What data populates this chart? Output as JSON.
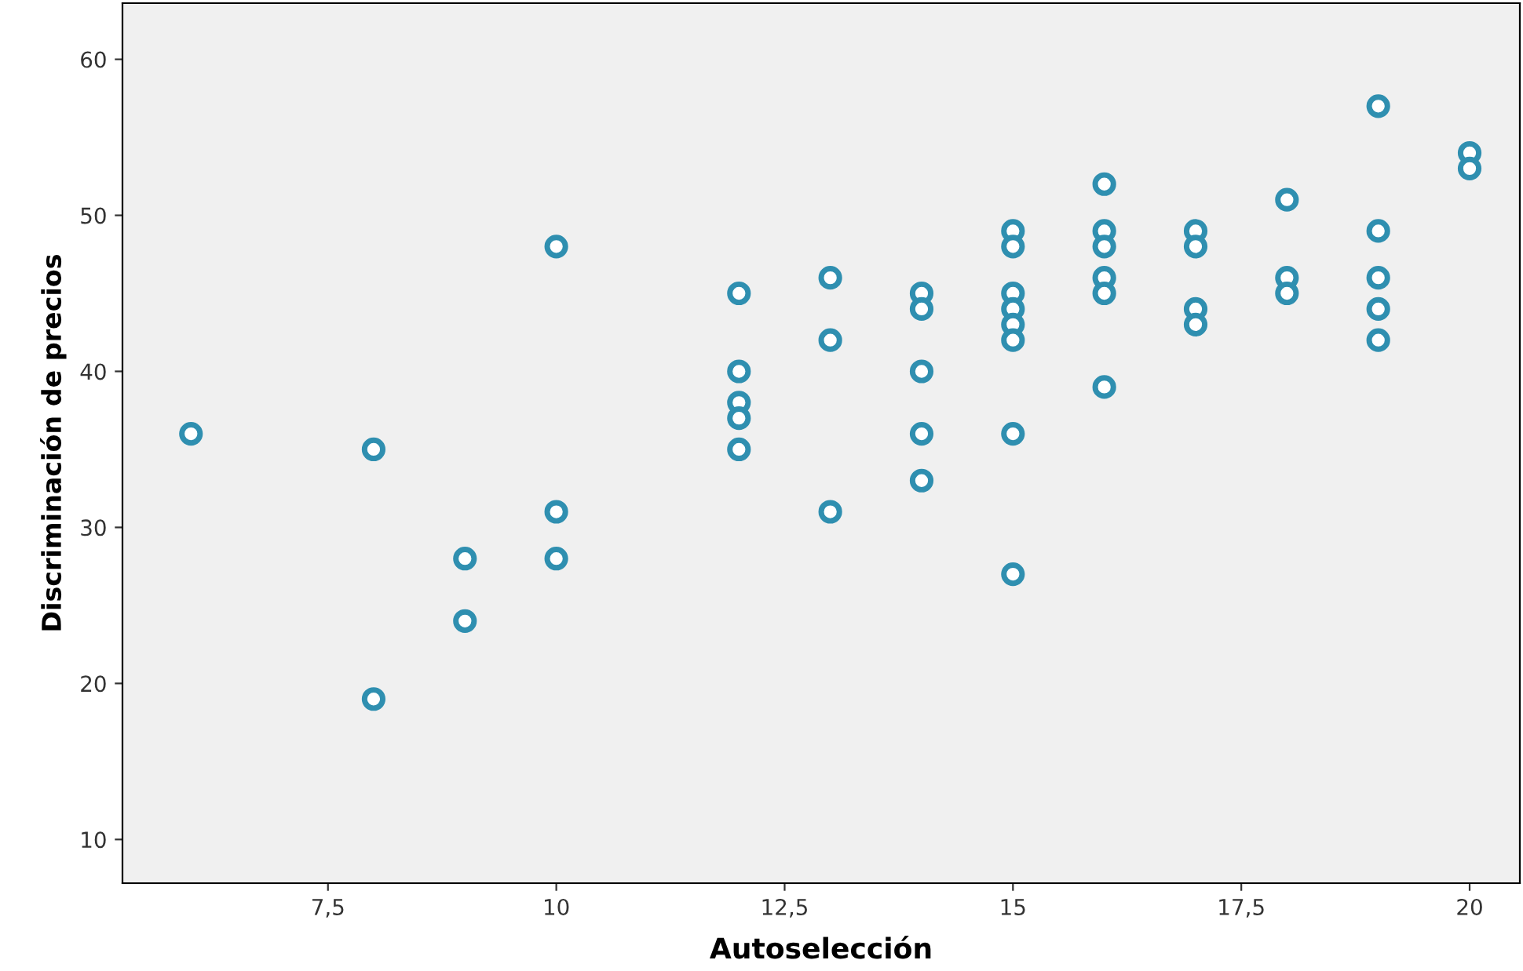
{
  "chart_data": {
    "type": "scatter",
    "xlabel": "Autoselección",
    "ylabel": "Discriminación de precios",
    "series": [
      {
        "color": "#2f8fb0",
        "x": [
          6,
          8,
          8,
          9,
          9,
          10,
          10,
          10,
          12,
          12,
          12,
          12,
          12,
          13,
          13,
          13,
          14,
          14,
          14,
          14,
          14,
          15,
          15,
          15,
          15,
          15,
          15,
          15,
          15,
          16,
          16,
          16,
          16,
          16,
          16,
          17,
          17,
          17,
          17,
          18,
          18,
          18,
          19,
          19,
          19,
          19,
          19,
          20,
          20
        ],
        "values": [
          36,
          35,
          19,
          28,
          24,
          48,
          31,
          28,
          45,
          40,
          38,
          37,
          35,
          46,
          42,
          31,
          45,
          44,
          40,
          36,
          33,
          49,
          48,
          45,
          44,
          43,
          42,
          36,
          27,
          52,
          49,
          48,
          46,
          45,
          39,
          49,
          48,
          44,
          43,
          51,
          46,
          45,
          57,
          49,
          46,
          44,
          42,
          54,
          53
        ]
      }
    ],
    "xlim": [
      5.25,
      20.55
    ],
    "ylim": [
      7.2,
      63.6
    ],
    "xticks": [
      {
        "value": 7.5,
        "label": "7,5"
      },
      10,
      {
        "value": 12.5,
        "label": "12,5"
      },
      15,
      {
        "value": 17.5,
        "label": "17,5"
      },
      20
    ],
    "yticks": [
      10,
      20,
      30,
      40,
      50,
      60
    ],
    "marker": "circle",
    "grid": false,
    "legend": false
  }
}
